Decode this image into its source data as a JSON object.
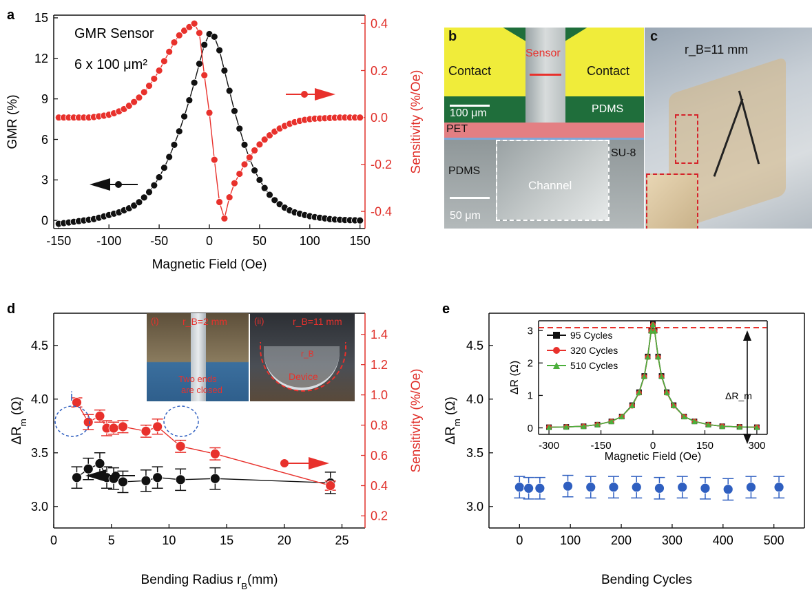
{
  "panel_letters": {
    "a": "a",
    "b": "b",
    "c": "c",
    "d": "d",
    "e": "e"
  },
  "colors": {
    "black_series": "#111111",
    "red_series": "#e8312c",
    "blue_series": "#2f5fc0",
    "red_axis": "#e0302a",
    "green_series": "#4caf3c"
  },
  "chart_data": [
    {
      "panel": "a",
      "type": "line",
      "xlabel": "Magnetic Field (Oe)",
      "ylabel": "GMR (%)",
      "y2label": "Sensitivity (%/Oe)",
      "xlim": [
        -155,
        155
      ],
      "ylim": [
        -0.6,
        15.2
      ],
      "y2lim": [
        -0.473,
        0.436
      ],
      "xticks": [
        -150,
        -100,
        -50,
        0,
        50,
        100,
        150
      ],
      "yticks": [
        0,
        3,
        6,
        9,
        12,
        15
      ],
      "y2ticks": [
        -0.4,
        -0.2,
        0.0,
        0.2,
        0.4
      ],
      "y2ticklabels": [
        "-0.4",
        "-0.2",
        "0.0",
        "0.2",
        "0.4"
      ],
      "annotations": [
        "GMR Sensor",
        "6 x 100 μm²"
      ],
      "series": [
        {
          "axis": "left",
          "color": "#111111",
          "x": [
            -150,
            -145,
            -140,
            -135,
            -130,
            -125,
            -120,
            -115,
            -110,
            -105,
            -100,
            -95,
            -90,
            -85,
            -80,
            -75,
            -70,
            -65,
            -60,
            -55,
            -50,
            -45,
            -40,
            -35,
            -30,
            -25,
            -20,
            -15,
            -10,
            -5,
            0,
            5,
            10,
            15,
            20,
            25,
            30,
            35,
            40,
            45,
            50,
            55,
            60,
            65,
            70,
            75,
            80,
            85,
            90,
            95,
            100,
            105,
            110,
            115,
            120,
            125,
            130,
            135,
            140,
            145,
            150
          ],
          "y": [
            -0.25,
            -0.2,
            -0.15,
            -0.1,
            -0.05,
            0,
            0.05,
            0.1,
            0.2,
            0.3,
            0.4,
            0.5,
            0.6,
            0.75,
            0.9,
            1.1,
            1.35,
            1.7,
            2.1,
            2.6,
            3.2,
            3.9,
            4.7,
            5.6,
            6.6,
            7.7,
            8.9,
            10.2,
            11.6,
            13.0,
            13.8,
            13.6,
            12.6,
            11.1,
            9.6,
            8.1,
            6.8,
            5.6,
            4.6,
            3.7,
            3.0,
            2.4,
            1.9,
            1.5,
            1.2,
            0.95,
            0.75,
            0.6,
            0.5,
            0.4,
            0.32,
            0.25,
            0.2,
            0.15,
            0.1,
            0.07,
            0.05,
            0.03,
            0.02,
            0.01,
            0.0
          ]
        },
        {
          "axis": "right",
          "color": "#e8312c",
          "x": [
            -150,
            -145,
            -140,
            -135,
            -130,
            -125,
            -120,
            -115,
            -110,
            -105,
            -100,
            -95,
            -90,
            -85,
            -80,
            -75,
            -70,
            -65,
            -60,
            -55,
            -50,
            -45,
            -40,
            -35,
            -30,
            -25,
            -20,
            -15,
            -10,
            -5,
            0,
            5,
            10,
            15,
            20,
            25,
            30,
            35,
            40,
            45,
            50,
            55,
            60,
            65,
            70,
            75,
            80,
            85,
            90,
            95,
            100,
            105,
            110,
            115,
            120,
            125,
            130,
            135,
            140,
            145,
            150
          ],
          "y": [
            0,
            0,
            0,
            0,
            0,
            0,
            0,
            0.002,
            0.005,
            0.008,
            0.012,
            0.018,
            0.026,
            0.036,
            0.05,
            0.066,
            0.085,
            0.108,
            0.135,
            0.165,
            0.2,
            0.24,
            0.28,
            0.32,
            0.35,
            0.37,
            0.385,
            0.4,
            0.36,
            0.18,
            0.02,
            -0.18,
            -0.36,
            -0.43,
            -0.34,
            -0.28,
            -0.24,
            -0.2,
            -0.17,
            -0.14,
            -0.115,
            -0.094,
            -0.076,
            -0.06,
            -0.047,
            -0.036,
            -0.027,
            -0.02,
            -0.014,
            -0.01,
            -0.007,
            -0.005,
            -0.004,
            -0.003,
            -0.002,
            -0.001,
            0,
            0,
            0,
            0,
            0
          ]
        }
      ]
    },
    {
      "panel": "d",
      "type": "scatter",
      "xlabel": "Bending Radius r_B(mm)",
      "ylabel": "ΔR_m (Ω)",
      "y2label": "Sensitivity (%/Oe)",
      "xlim": [
        0,
        27
      ],
      "ylim": [
        2.8,
        4.8
      ],
      "y2lim": [
        0.12,
        1.54
      ],
      "xticks": [
        0,
        5,
        10,
        15,
        20,
        25
      ],
      "yticks": [
        3.0,
        3.5,
        4.0,
        4.5
      ],
      "y2ticks": [
        0.2,
        0.4,
        0.6,
        0.8,
        1.0,
        1.2,
        1.4
      ],
      "yticklabels": [
        "3.0",
        "3.5",
        "4.0",
        "4.5"
      ],
      "y2ticklabels": [
        "0.2",
        "0.4",
        "0.6",
        "0.8",
        "1.0",
        "1.2",
        "1.4"
      ],
      "annotations": [
        "i",
        "ii"
      ],
      "series": [
        {
          "axis": "left",
          "color": "#111111",
          "x": [
            2,
            3,
            4,
            4.6,
            5.2,
            6,
            8,
            9,
            11,
            14,
            24
          ],
          "y": [
            3.27,
            3.35,
            3.4,
            3.27,
            3.26,
            3.23,
            3.24,
            3.27,
            3.25,
            3.26,
            3.22
          ],
          "err": [
            0.1,
            0.1,
            0.1,
            0.1,
            0.1,
            0.1,
            0.1,
            0.1,
            0.1,
            0.1,
            0.1
          ]
        },
        {
          "axis": "right",
          "color": "#e8312c",
          "x": [
            2,
            3,
            4,
            4.6,
            5.2,
            6,
            8,
            9,
            11,
            14,
            24
          ],
          "y": [
            0.95,
            0.82,
            0.86,
            0.78,
            0.78,
            0.79,
            0.76,
            0.79,
            0.66,
            0.61,
            0.4
          ],
          "err": [
            0.03,
            0.05,
            0.04,
            0.05,
            0.04,
            0.04,
            0.04,
            0.05,
            0.04,
            0.04,
            0.03
          ]
        }
      ]
    },
    {
      "panel": "e",
      "type": "scatter",
      "xlabel": "Bending Cycles",
      "ylabel": "ΔR_m (Ω)",
      "xlim": [
        -60,
        560
      ],
      "ylim": [
        2.8,
        4.8
      ],
      "xticks": [
        0,
        100,
        200,
        300,
        400,
        500
      ],
      "yticks": [
        3.0,
        3.5,
        4.0,
        4.5
      ],
      "yticklabels": [
        "3.0",
        "3.5",
        "4.0",
        "4.5"
      ],
      "series": [
        {
          "axis": "left",
          "color": "#2f5fc0",
          "x": [
            0,
            18,
            40,
            95,
            140,
            185,
            230,
            275,
            320,
            365,
            410,
            455,
            510
          ],
          "y": [
            3.18,
            3.17,
            3.17,
            3.19,
            3.18,
            3.18,
            3.18,
            3.17,
            3.18,
            3.17,
            3.16,
            3.18,
            3.18
          ],
          "err": [
            0.1,
            0.1,
            0.1,
            0.1,
            0.1,
            0.1,
            0.1,
            0.1,
            0.1,
            0.1,
            0.1,
            0.1,
            0.1
          ]
        }
      ]
    },
    {
      "panel": "e-inset",
      "type": "line",
      "xlabel": "Magnetic Field (Oe)",
      "ylabel": "ΔR (Ω)",
      "xlim": [
        -330,
        330
      ],
      "ylim": [
        -0.2,
        3.3
      ],
      "xticks": [
        -300,
        -150,
        0,
        150,
        300
      ],
      "yticks": [
        0,
        1,
        2,
        3
      ],
      "annotations": [
        "ΔR_m"
      ],
      "series": [
        {
          "name": "95 Cycles",
          "color": "#111111",
          "marker": "square",
          "x": [
            -300,
            -250,
            -200,
            -160,
            -120,
            -90,
            -60,
            -40,
            -25,
            -15,
            -5,
            0,
            5,
            15,
            25,
            40,
            60,
            90,
            120,
            160,
            200,
            250,
            300
          ],
          "y": [
            0.02,
            0.03,
            0.05,
            0.1,
            0.2,
            0.35,
            0.7,
            1.1,
            1.6,
            2.2,
            3.0,
            3.2,
            3.0,
            2.2,
            1.6,
            1.1,
            0.7,
            0.35,
            0.2,
            0.1,
            0.05,
            0.03,
            0.02
          ]
        },
        {
          "name": "320 Cycles",
          "color": "#e8312c",
          "marker": "circle",
          "x": [
            -300,
            -250,
            -200,
            -160,
            -120,
            -90,
            -60,
            -40,
            -25,
            -15,
            -5,
            0,
            5,
            15,
            25,
            40,
            60,
            90,
            120,
            160,
            200,
            250,
            300
          ],
          "y": [
            0.02,
            0.03,
            0.05,
            0.1,
            0.2,
            0.35,
            0.68,
            1.08,
            1.58,
            2.18,
            2.98,
            3.18,
            2.98,
            2.18,
            1.58,
            1.08,
            0.68,
            0.35,
            0.2,
            0.1,
            0.05,
            0.03,
            0.02
          ]
        },
        {
          "name": "510 Cycles",
          "color": "#4caf3c",
          "marker": "triangle",
          "x": [
            -300,
            -250,
            -200,
            -160,
            -120,
            -90,
            -60,
            -40,
            -25,
            -15,
            -5,
            0,
            5,
            15,
            25,
            40,
            60,
            90,
            120,
            160,
            200,
            250,
            300
          ],
          "y": [
            0.02,
            0.03,
            0.05,
            0.1,
            0.2,
            0.35,
            0.69,
            1.09,
            1.59,
            2.19,
            2.99,
            3.19,
            2.99,
            2.19,
            1.59,
            1.09,
            0.69,
            0.35,
            0.2,
            0.1,
            0.05,
            0.03,
            0.02
          ]
        }
      ]
    }
  ],
  "photo_b": {
    "contact_left": "Contact",
    "contact_right": "Contact",
    "sensor": "Sensor",
    "scale_top": "100 μm",
    "pdms_top": "PDMS",
    "pet": "PET",
    "su8": "SU-8",
    "pdms_bottom": "PDMS",
    "channel": "Channel",
    "scale_bottom": "50 μm"
  },
  "photo_c": {
    "radius": "r_B=11 mm"
  },
  "inset_d": {
    "i_label": "(i)",
    "i_radius": "r_B=2 mm",
    "i_note1": "Two ends",
    "i_note2": "are closed",
    "ii_label": "(ii)",
    "ii_radius": "r_B=11 mm",
    "ii_rb": "r_B",
    "ii_device": "Device"
  }
}
